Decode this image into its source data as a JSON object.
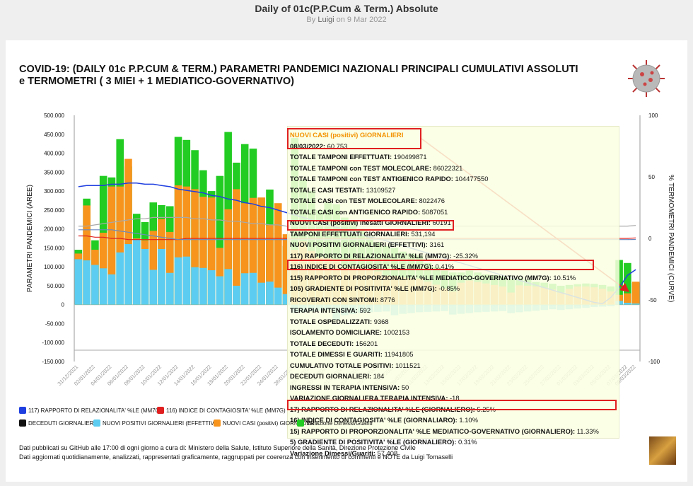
{
  "page": {
    "title": "Daily of 01c(P.P.Cum & Term.) Absolute",
    "byline_prefix": "By",
    "author": "Luigi",
    "byline_date": "on 9 Mar 2022"
  },
  "chart_header": "COVID-19: (DAILY 01c P.P.CUM & TERM.) PARAMETRI PANDEMICI NAZIONALI PRINCIPALI CUMULATIVI ASSOLUTI e TERMOMETRI ( 3 MIEI + 1 MEDIATICO-GOVERNATIVO)",
  "colors": {
    "relazionalita": "#1f3fe0",
    "contagiosita": "#e02020",
    "deceduti": "#111111",
    "nuovi_positivi": "#5ccdf0",
    "nuovi_casi": "#f7941d",
    "variazione_dimessi": "#22cc22",
    "highlight": "#e02020"
  },
  "chart_data": {
    "type": "bar",
    "xlabel": "",
    "ylabel": "PARAMETRI PANDEMICI (AREE)",
    "y2label": "% TERMOMETRI PANDEMICI (CURVE)",
    "ylim": [
      -150000,
      500000
    ],
    "y2lim": [
      -100,
      100
    ],
    "yticks": [
      "500.000",
      "450.000",
      "400.000",
      "350.000",
      "300.000",
      "250.000",
      "200.000",
      "150.000",
      "100.000",
      "50.000",
      "0",
      "-50.000",
      "-100.000",
      "-150.000"
    ],
    "y2ticks": [
      "100",
      "50",
      "0",
      "-50",
      "-100"
    ],
    "categories": [
      "31/12/2021",
      "01/01/2022",
      "02/01/2022",
      "03/01/2022",
      "04/01/2022",
      "05/01/2022",
      "06/01/2022",
      "07/01/2022",
      "08/01/2022",
      "09/01/2022",
      "10/01/2022",
      "11/01/2022",
      "12/01/2022",
      "13/01/2022",
      "14/01/2022",
      "15/01/2022",
      "16/01/2022",
      "17/01/2022",
      "18/01/2022",
      "19/01/2022",
      "20/01/2022",
      "21/01/2022",
      "22/01/2022",
      "23/01/2022",
      "24/01/2022",
      "25/01/2022",
      "26/01/2022",
      "27/01/2022",
      "28/01/2022",
      "29/01/2022",
      "30/01/2022",
      "31/01/2022",
      "01/02/2022",
      "02/02/2022",
      "03/02/2022",
      "04/02/2022",
      "05/02/2022",
      "06/02/2022",
      "07/02/2022",
      "08/02/2022",
      "09/02/2022",
      "10/02/2022",
      "11/02/2022",
      "12/02/2022",
      "13/02/2022",
      "14/02/2022",
      "15/02/2022",
      "16/02/2022",
      "17/02/2022",
      "18/02/2022",
      "19/02/2022",
      "20/02/2022",
      "21/02/2022",
      "22/02/2022",
      "23/02/2022",
      "24/02/2022",
      "25/02/2022",
      "26/02/2022",
      "27/02/2022",
      "28/02/2022",
      "01/03/2022",
      "02/03/2022",
      "03/03/2022",
      "04/03/2022",
      "05/03/2022",
      "06/03/2022",
      "07/03/2022",
      "08/03/2022"
    ],
    "xtick_labels": [
      "31/12/2021",
      "02/01/2022",
      "04/01/2022",
      "06/01/2022",
      "08/01/2022",
      "10/01/2022",
      "12/01/2022",
      "14/01/2022",
      "16/01/2022",
      "18/01/2022",
      "20/01/2022",
      "22/01/2022",
      "24/01/2022",
      "26/01/2022",
      "28/01/2022",
      "30/01/2022",
      "01/02/2022",
      "03/02/2022",
      "05/02/2022",
      "07/02/2022",
      "09/02/2022",
      "11/02/2022",
      "13/02/2022",
      "15/02/2022",
      "17/02/2022",
      "19/02/2022",
      "21/02/2022",
      "23/02/2022",
      "25/02/2022",
      "27/02/2022",
      "01/03/2022",
      "03/03/2022",
      "05/03/2022",
      "07/03/2022",
      "09/03/2022"
    ],
    "series": [
      {
        "name": "NUOVI POSITIVI GIORNALIERI (EFFETTIVI)",
        "kind": "bar",
        "values": [
          120000,
          117000,
          105000,
          96000,
          80000,
          138000,
          160000,
          172000,
          147000,
          92000,
          147000,
          84000,
          125000,
          127000,
          99000,
          97000,
          91000,
          75000,
          94000,
          50000,
          83000,
          84000,
          58000,
          61000,
          45000,
          28000,
          -22000,
          -20000,
          -18000,
          -16000,
          -14000,
          -40000,
          -28000,
          -25000,
          -22000,
          -20000,
          -19000,
          -18000,
          -28000,
          -24000,
          -22000,
          -20000,
          -19000,
          -18000,
          -17000,
          -26000,
          -24000,
          -22000,
          -20000,
          -19000,
          -18000,
          -17000,
          -22000,
          -20000,
          -18000,
          -16000,
          -14000,
          -12000,
          -14000,
          -12000,
          -10000,
          -8000,
          -6000,
          -5000,
          -4000,
          10000,
          5000,
          3161
        ]
      },
      {
        "name": "NUOVI CASI (positivi) GIORNALIERI",
        "kind": "bar",
        "values": [
          135000,
          262000,
          145000,
          190000,
          312000,
          312000,
          385000,
          175000,
          170000,
          195000,
          226000,
          192000,
          315000,
          312000,
          305000,
          285000,
          283000,
          150000,
          252000,
          305000,
          268000,
          282000,
          283000,
          210000,
          268000,
          186000,
          145000,
          167000,
          142000,
          125000,
          123000,
          120000,
          98000,
          102000,
          98000,
          92000,
          88000,
          77000,
          76000,
          72000,
          70000,
          69000,
          61000,
          53000,
          43000,
          35000,
          58000,
          64000,
          60000,
          56000,
          52000,
          48000,
          32000,
          51000,
          50000,
          48000,
          45000,
          40000,
          32000,
          42000,
          48000,
          48000,
          46000,
          42000,
          35000,
          26000,
          30000,
          60753
        ]
      },
      {
        "name": "Variazione Dimessi/Guariti",
        "kind": "bar",
        "values": [
          145000,
          280000,
          170000,
          340000,
          336000,
          437000,
          365000,
          240000,
          218000,
          270000,
          263000,
          260000,
          443000,
          435000,
          408000,
          355000,
          300000,
          340000,
          456000,
          375000,
          424000,
          412000,
          260000,
          304000,
          190000,
          155000,
          440000,
          330000,
          300000,
          250000,
          270000,
          265000,
          230000,
          220000,
          200000,
          180000,
          165000,
          155000,
          150000,
          140000,
          135000,
          130000,
          110000,
          100000,
          90000,
          85000,
          85000,
          90000,
          85000,
          80000,
          78000,
          75000,
          68000,
          70000,
          66000,
          60000,
          58000,
          55000,
          50000,
          52000,
          54000,
          56000,
          55000,
          52000,
          48000,
          118000,
          110000,
          57408
        ]
      },
      {
        "name": "RAPPORTO DI RELAZIONALITA' %LE (MM7G)",
        "kind": "line",
        "axis": "y2",
        "values": [
          42,
          43,
          43,
          43,
          44,
          44,
          45,
          45,
          44,
          44,
          43,
          42,
          40,
          39,
          38,
          37,
          35,
          34,
          32,
          31,
          29,
          28,
          26,
          25,
          23,
          21,
          19,
          17,
          15,
          13,
          11,
          9,
          7,
          5,
          3,
          1,
          0,
          -2,
          -4,
          -6,
          -8,
          -10,
          -12,
          -14,
          -16,
          -18,
          -20,
          -22,
          -24,
          -26,
          -28,
          -30,
          -32,
          -34,
          -36,
          -38,
          -40,
          -42,
          -44,
          -46,
          -48,
          -50,
          -52,
          -53,
          -48,
          -40,
          -30,
          -25.32
        ]
      },
      {
        "name": "INDICE DI CONTAGIOSITA' %LE (MM7G)",
        "kind": "line",
        "axis": "y2",
        "values": [
          2,
          2,
          1,
          1,
          0,
          0,
          -1,
          -1,
          -1,
          -1,
          -1,
          -1,
          -1,
          0,
          0,
          0,
          0,
          0,
          0,
          0,
          0,
          0,
          0,
          0,
          0,
          0,
          0,
          0,
          0,
          0,
          0,
          0,
          0,
          0,
          0,
          0,
          0,
          0,
          0,
          0,
          0,
          0,
          0,
          0,
          0,
          0,
          0,
          0,
          0,
          0,
          0,
          0,
          0,
          0,
          0,
          0,
          0,
          0,
          0,
          0,
          0,
          0,
          0,
          0,
          0,
          0,
          0,
          0.41
        ]
      },
      {
        "name": "RAPPORTO DI PROPORZIONALITA' %LE MEDIATICO-GOVERNATIVO (MM7G)",
        "kind": "line",
        "axis": "y2",
        "values": [
          10,
          10,
          11,
          12,
          13,
          14,
          15,
          16,
          16,
          17,
          17,
          17,
          17,
          17,
          16,
          16,
          15,
          15,
          14,
          14,
          13,
          12,
          12,
          11,
          11,
          10,
          10,
          10,
          10,
          10,
          10,
          10,
          10,
          10,
          10,
          10,
          10,
          10,
          10,
          10,
          10,
          10,
          10,
          10,
          10,
          10,
          10,
          10,
          10,
          10,
          10,
          10,
          10,
          10,
          10,
          10,
          10,
          10,
          10,
          10,
          10,
          10,
          10,
          10,
          10,
          10,
          10,
          10.51
        ]
      },
      {
        "name": "GRADIENTE DI POSITIVITA' %LE (MM7G)",
        "kind": "line",
        "axis": "y2",
        "values": [
          7,
          7,
          7,
          7,
          7,
          6,
          5,
          4,
          3,
          2,
          1,
          0,
          -1,
          -1,
          -1,
          -1,
          -1,
          -1,
          -1,
          -1,
          -1,
          -1,
          -1,
          -1,
          -1,
          -1,
          -1,
          -1,
          -1,
          -1,
          -1,
          -1,
          -1,
          -1,
          -1,
          -1,
          -1,
          -1,
          -1,
          -1,
          -1,
          -1,
          -1,
          -1,
          -1,
          -1,
          -1,
          -1,
          -1,
          -1,
          -1,
          -1,
          -1,
          -1,
          -1,
          -1,
          -1,
          -1,
          -1,
          -1,
          -1,
          -1,
          -1,
          -1,
          -1,
          -1,
          -1,
          -0.85
        ]
      }
    ],
    "legend": [
      {
        "label": "117) RAPPORTO DI RELAZIONALITA' %LE (MM7G)",
        "color": "#1f3fe0"
      },
      {
        "label": "116) INDICE DI CONTAGIOSITA' %LE (MM7G)",
        "color": "#e02020"
      },
      {
        "label": "DECEDUTI GIORNALIERI",
        "color": "#111111"
      },
      {
        "label": "NUOVI POSITIVI GIORNALIERI (EFFETTIVI)",
        "color": "#5ccdf0"
      },
      {
        "label": "NUOVI CASI (positivi) GIORNALIERI",
        "color": "#f7941d"
      },
      {
        "label": "Variazione Dimessi/Guariti",
        "color": "#22cc22"
      }
    ],
    "legend_position": "bottom",
    "grid": false
  },
  "tooltip": {
    "rows": [
      {
        "label": "NUOVI CASI (positivi) GIORNALIERI",
        "value": "",
        "style": "orange"
      },
      {
        "label": "08/03/2022:",
        "value": " 60.753"
      },
      {
        "label": "TOTALE TAMPONI EFFETTUATI:",
        "value": " 190499871"
      },
      {
        "label": "TOTALE TAMPONI con TEST MOLECOLARE:",
        "value": " 86022321"
      },
      {
        "label": "TOTALE TAMPONI con TEST ANTIGENICO RAPIDO:",
        "value": " 104477550"
      },
      {
        "label": "TOTALE CASI TESTATI:",
        "value": " 13109527"
      },
      {
        "label": "TOTALE CASI con TEST MOLECOLARE:",
        "value": " 8022476"
      },
      {
        "label": "TOTALE CASI con ANTIGENICO RAPIDO:",
        "value": " 5087051"
      },
      {
        "label": "NUOVI CASI (positivi) inesatti GIORNALIERI:",
        "value": " 60191"
      },
      {
        "label": "TAMPONI EFFETTUATI GIORNALIERI:",
        "value": " 531,194"
      },
      {
        "label": "NUOVI POSITIVI GIORNALIERI (EFFETTIVI):",
        "value": " 3161"
      },
      {
        "label": "117) RAPPORTO DI RELAZIONALITA' %LE (MM7G):",
        "value": " -25.32%"
      },
      {
        "label": "116) INDICE DI CONTAGIOSITA' %LE (MM7G):",
        "value": " 0.41%"
      },
      {
        "label": "115) RAPPORTO DI PROPORZIONALITA' %LE MEDIATICO-GOVERNATIVO (MM7G):",
        "value": " 10.51%"
      },
      {
        "label": "105) GRADIENTE DI POSITIVITA' %LE (MM7G):",
        "value": " -0.85%"
      },
      {
        "label": "RICOVERATI CON SINTOMI:",
        "value": " 8776"
      },
      {
        "label": "TERAPIA INTENSIVA:",
        "value": " 592"
      },
      {
        "label": "TOTALE OSPEDALIZZATI:",
        "value": " 9368"
      },
      {
        "label": "ISOLAMENTO DOMICILIARE:",
        "value": " 1002153"
      },
      {
        "label": "TOTALE DECEDUTI:",
        "value": " 156201"
      },
      {
        "label": "TOTALE DIMESSI E GUARITI:",
        "value": " 11941805"
      },
      {
        "label": "CUMULATIVO TOTALE POSITIVI:",
        "value": " 1011521"
      },
      {
        "label": "DECEDUTI GIORNALIERI:",
        "value": " 184"
      },
      {
        "label": "INGRESSI IN TERAPIA INTENSIVA:",
        "value": " 50"
      },
      {
        "label": "VARIAZIONE GIORNALIERA TERAPIA INTENSIVA:",
        "value": " -18"
      },
      {
        "label": "17) RAPPORTO DI RELAZIONALITA' %LE (GIORNALIERO):",
        "value": " 5.25%"
      },
      {
        "label": "16) INDICE DI CONTAGIOSITA' %LE (GIORNALIARO):",
        "value": " 1.10%"
      },
      {
        "label": "15) RAPPORTO DI PROPORZIONALITA' %LE MEDIATICO-GOVERNATIVO (GIORNALIERO):",
        "value": " 11.33%"
      },
      {
        "label": "5) GRADIENTE DI POSITIVITA' %LE (GIORNALIERO):",
        "value": " 0.31%"
      },
      {
        "label": "Variazione Dimessi/Guariti:",
        "value": " 57,408"
      }
    ]
  },
  "footer": {
    "line1": "Dati pubblicati su GitHub alle 17:00 di ogni giorno a cura di: Ministero della Salute, Istituto Superiore della Sanità, Direzione Protezione Civile",
    "line2": "Dati aggiornati quotidianamente, analizzati, rappresentati graficamente, raggruppati per coerenza con inserimento di commenti e NOTE da Luigi Tomaselli"
  }
}
